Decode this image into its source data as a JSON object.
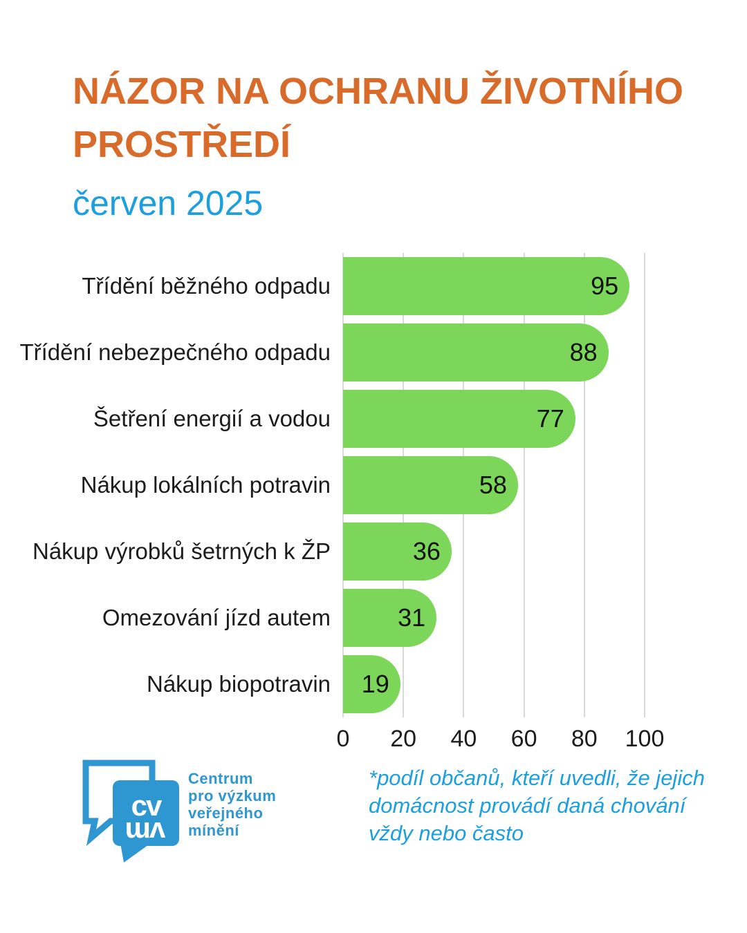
{
  "header": {
    "title_lines": [
      "NÁZOR NA OCHRANU ŽIVOTNÍHO",
      "PROSTŘEDÍ"
    ],
    "subtitle": "červen 2025",
    "title_color": "#D96B2A",
    "subtitle_color": "#1B9FDE"
  },
  "chart_data": {
    "type": "bar",
    "orientation": "horizontal",
    "categories": [
      "Třídění běžného odpadu",
      "Třídění nebezpečného odpadu",
      "Šetření energií a vodou",
      "Nákup lokálních potravin",
      "Nákup výrobků šetrných k ŽP",
      "Omezování jízd autem",
      "Nákup biopotravin"
    ],
    "values": [
      95,
      88,
      77,
      58,
      36,
      31,
      19
    ],
    "xlim": [
      0,
      100
    ],
    "x_ticks": [
      0,
      20,
      40,
      60,
      80,
      100
    ],
    "grid": "vertical",
    "gridline_color": "#D9D9D9",
    "bar_color": "#7CD65A",
    "value_label_position": "inside-end",
    "title": "NÁZOR NA OCHRANU ŽIVOTNÍHO PROSTŘEDÍ",
    "xlabel": "",
    "ylabel": ""
  },
  "footer": {
    "logo": {
      "abbr": "CVVM",
      "letters_top": "cv",
      "letters_bottom": "vm",
      "name_lines": [
        "Centrum",
        "pro výzkum",
        "veřejného",
        "mínění"
      ],
      "color": "#2E96D1"
    },
    "footnote_lines": [
      "*podíl občanů, kteří uvedli, že jejich",
      "domácnost provádí daná chování",
      "vždy nebo často"
    ]
  }
}
